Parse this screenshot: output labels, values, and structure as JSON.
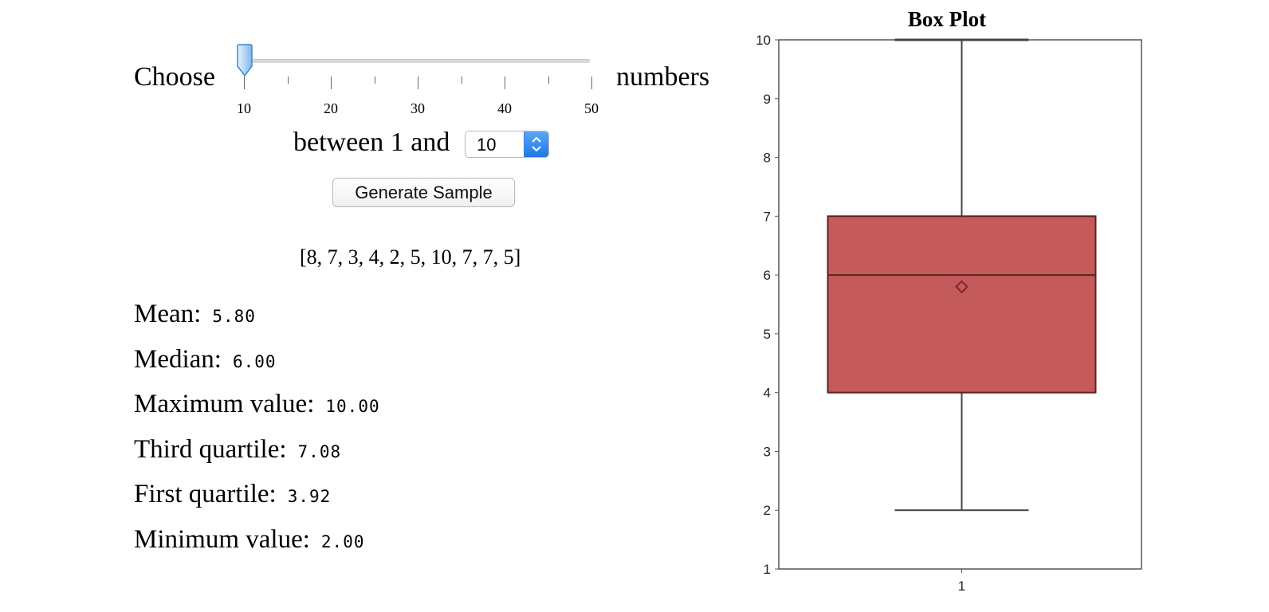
{
  "controls": {
    "choose_label": "Choose",
    "numbers_label": "numbers",
    "slider": {
      "value": 10,
      "min": 10,
      "max": 50,
      "tick_labels": [
        "10",
        "20",
        "30",
        "40",
        "50"
      ]
    },
    "between_label": "between 1 and",
    "select_value": "10",
    "generate_button_label": "Generate Sample"
  },
  "sample_text": "[8, 7, 3, 4, 2, 5, 10, 7, 7, 5]",
  "stats": [
    {
      "label": "Mean:",
      "value": "5.80"
    },
    {
      "label": "Median:",
      "value": "6.00"
    },
    {
      "label": "Maximum value:",
      "value": "10.00"
    },
    {
      "label": "Third quartile:",
      "value": "7.08"
    },
    {
      "label": "First quartile:",
      "value": "3.92"
    },
    {
      "label": "Minimum value:",
      "value": "2.00"
    }
  ],
  "chart_data": {
    "type": "box",
    "title": "Box Plot",
    "categories": [
      "1"
    ],
    "ylim": [
      1,
      10
    ],
    "yticks": [
      "1",
      "2",
      "3",
      "4",
      "5",
      "6",
      "7",
      "8",
      "9",
      "10"
    ],
    "box": {
      "whisker_low": 2,
      "q1": 4,
      "median": 6,
      "q3": 7,
      "whisker_high": 10,
      "mean": 5.8
    },
    "colors": {
      "box_fill": "#c55a5a",
      "box_stroke": "#5a2323",
      "axis": "#555555"
    }
  }
}
